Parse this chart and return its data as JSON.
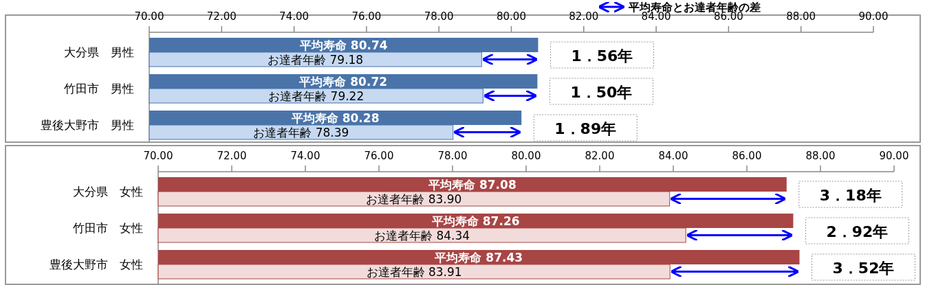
{
  "chart_data": [
    {
      "type": "bar",
      "orientation": "horizontal",
      "title": "平均寿命とお達者年齢の差",
      "categories": [
        "大分県　男性",
        "竹田市　男性",
        "豊後大野市　男性"
      ],
      "xlim": [
        70,
        90
      ],
      "xticks": [
        {
          "value": 70,
          "label": "70.00"
        },
        {
          "value": 72,
          "label": "72.00"
        },
        {
          "value": 74,
          "label": "74.00"
        },
        {
          "value": 76,
          "label": "76.00"
        },
        {
          "value": 78,
          "label": "78.00"
        },
        {
          "value": 80,
          "label": "80.00"
        },
        {
          "value": 82,
          "label": "82.00"
        },
        {
          "value": 84,
          "label": "84.00"
        },
        {
          "value": 86,
          "label": "86.00"
        },
        {
          "value": 88,
          "label": "88.00"
        },
        {
          "value": 90,
          "label": "90.00"
        }
      ],
      "series": [
        {
          "name": "平均寿命",
          "color": "#4a74a9",
          "values": [
            80.74,
            80.72,
            80.28
          ],
          "value_labels": [
            "80.74",
            "80.72",
            "80.28"
          ]
        },
        {
          "name": "お達者年齢",
          "color": "#c6d9f1",
          "values": [
            79.18,
            79.22,
            78.39
          ],
          "value_labels": [
            "79.18",
            "79.22",
            "78.39"
          ]
        }
      ],
      "annotations": [
        {
          "text": "1．56年",
          "x": 80.74,
          "y": "大分県　男性"
        },
        {
          "text": "1．50年",
          "x": 80.72,
          "y": "竹田市　男性"
        },
        {
          "text": "1．89年",
          "x": 80.28,
          "y": "豊後大野市　男性"
        }
      ]
    },
    {
      "type": "bar",
      "orientation": "horizontal",
      "categories": [
        "大分県　女性",
        "竹田市　女性",
        "豊後大野市　女性"
      ],
      "xlim": [
        70,
        90
      ],
      "xticks": [
        {
          "value": 70,
          "label": "70.00"
        },
        {
          "value": 72,
          "label": "72.00"
        },
        {
          "value": 74,
          "label": "74.00"
        },
        {
          "value": 76,
          "label": "76.00"
        },
        {
          "value": 78,
          "label": "78.00"
        },
        {
          "value": 80,
          "label": "80.00"
        },
        {
          "value": 82,
          "label": "82.00"
        },
        {
          "value": 84,
          "label": "84.00"
        },
        {
          "value": 86,
          "label": "86.00"
        },
        {
          "value": 88,
          "label": "88.00"
        },
        {
          "value": 90,
          "label": "90.00"
        }
      ],
      "series": [
        {
          "name": "平均寿命",
          "color": "#a84545",
          "values": [
            87.08,
            87.26,
            87.43
          ],
          "value_labels": [
            "87.08",
            "87.26",
            "87.43"
          ]
        },
        {
          "name": "お達者年齢",
          "color": "#f2dcdb",
          "values": [
            83.9,
            84.34,
            83.91
          ],
          "value_labels": [
            "83.90",
            "84.34",
            "83.91"
          ]
        }
      ],
      "annotations": [
        {
          "text": "3．18年",
          "x": 87.08,
          "y": "大分県　女性"
        },
        {
          "text": "2．92年",
          "x": 87.26,
          "y": "竹田市　女性"
        },
        {
          "text": "3．52年",
          "x": 87.43,
          "y": "豊後大野市　女性"
        }
      ]
    }
  ]
}
